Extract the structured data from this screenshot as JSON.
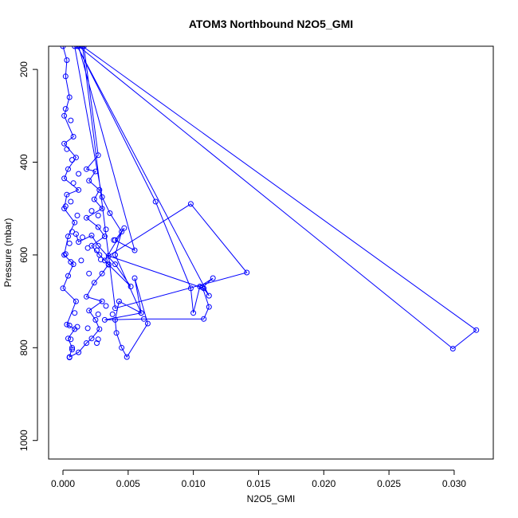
{
  "chart_data": {
    "type": "line",
    "title": "ATOM3 Northbound N2O5_GMI",
    "xlabel": "N2O5_GMI",
    "ylabel": "Pressure (mbar)",
    "xlim": [
      -0.0011,
      0.033
    ],
    "ylim": [
      1040,
      150
    ],
    "y_reversed": true,
    "grid": false,
    "x_ticks": [
      0.0,
      0.005,
      0.01,
      0.015,
      0.02,
      0.025,
      0.03
    ],
    "x_tick_labels": [
      "0.000",
      "0.005",
      "0.010",
      "0.015",
      "0.020",
      "0.025",
      "0.030"
    ],
    "y_ticks": [
      200,
      400,
      600,
      800,
      1000
    ],
    "y_tick_labels": [
      "200",
      "400",
      "600",
      "800",
      "1000"
    ],
    "color": "#0000ff",
    "marker": "open-circle",
    "points": [
      [
        0.0,
        150
      ],
      [
        0.0003,
        180
      ],
      [
        0.0002,
        215
      ],
      [
        0.0005,
        260
      ],
      [
        0.0001,
        300
      ],
      [
        0.0008,
        345
      ],
      [
        0.0001,
        360
      ],
      [
        0.001,
        390
      ],
      [
        0.0004,
        415
      ],
      [
        0.0001,
        435
      ],
      [
        0.0012,
        460
      ],
      [
        0.0003,
        470
      ],
      [
        0.0001,
        500
      ],
      [
        0.0009,
        530
      ],
      [
        0.0004,
        560
      ],
      [
        0.0001,
        600
      ],
      [
        0.0008,
        620
      ],
      [
        0.0004,
        645
      ],
      [
        0.0,
        672
      ],
      [
        0.001,
        700
      ],
      [
        0.0003,
        750
      ],
      [
        0.0009,
        760
      ],
      [
        0.0004,
        780
      ],
      [
        0.0007,
        800
      ],
      [
        0.0005,
        820
      ],
      [
        0.0012,
        810
      ],
      [
        0.0018,
        790
      ],
      [
        0.0022,
        780
      ],
      [
        0.0028,
        760
      ],
      [
        0.0025,
        740
      ],
      [
        0.002,
        720
      ],
      [
        0.003,
        700
      ],
      [
        0.0018,
        690
      ],
      [
        0.0024,
        660
      ],
      [
        0.003,
        640
      ],
      [
        0.0035,
        620
      ],
      [
        0.0028,
        600
      ],
      [
        0.0022,
        580
      ],
      [
        0.0032,
        560
      ],
      [
        0.0027,
        540
      ],
      [
        0.0018,
        520
      ],
      [
        0.003,
        500
      ],
      [
        0.0024,
        480
      ],
      [
        0.0028,
        460
      ],
      [
        0.002,
        440
      ],
      [
        0.0025,
        420
      ],
      [
        0.0018,
        415
      ],
      [
        0.0027,
        385
      ],
      [
        0.0016,
        150
      ],
      [
        0.0009,
        150
      ],
      [
        0.003,
        475
      ],
      [
        0.0036,
        510
      ],
      [
        0.0045,
        550
      ],
      [
        0.004,
        600
      ],
      [
        0.006,
        725
      ],
      [
        0.0043,
        700
      ],
      [
        0.004,
        740
      ],
      [
        0.0041,
        768
      ],
      [
        0.0045,
        800
      ],
      [
        0.0049,
        820
      ],
      [
        0.0065,
        748
      ],
      [
        0.0055,
        650
      ],
      [
        0.006,
        725
      ],
      [
        0.0032,
        740
      ],
      [
        0.0062,
        738
      ],
      [
        0.0108,
        738
      ],
      [
        0.0112,
        712
      ],
      [
        0.0107,
        670
      ],
      [
        0.0115,
        650
      ],
      [
        0.0105,
        668
      ],
      [
        0.01,
        725
      ],
      [
        0.0098,
        672
      ],
      [
        0.0071,
        485
      ],
      [
        0.0011,
        150
      ],
      [
        0.0112,
        688
      ],
      [
        0.0108,
        672
      ],
      [
        0.0035,
        602
      ],
      [
        0.0098,
        490
      ],
      [
        0.0141,
        638
      ],
      [
        0.004,
        715
      ],
      [
        0.0015,
        150
      ],
      [
        0.0317,
        762
      ],
      [
        0.0299,
        802
      ],
      [
        0.0012,
        150
      ],
      [
        0.0055,
        590
      ],
      [
        0.004,
        568
      ],
      [
        0.0047,
        542
      ],
      [
        0.0032,
        612
      ],
      [
        0.0035,
        621
      ],
      [
        0.0052,
        668
      ],
      [
        0.004,
        620
      ],
      [
        0.0027,
        580
      ],
      [
        0.0022,
        558
      ],
      [
        0.0012,
        572
      ],
      [
        0.001,
        555
      ]
    ],
    "extra_points": [
      [
        0.0002,
        285
      ],
      [
        0.0006,
        310
      ],
      [
        0.0003,
        372
      ],
      [
        0.0007,
        395
      ],
      [
        0.0012,
        425
      ],
      [
        0.0008,
        445
      ],
      [
        0.0006,
        485
      ],
      [
        0.0002,
        495
      ],
      [
        0.0011,
        515
      ],
      [
        0.0007,
        550
      ],
      [
        0.0005,
        575
      ],
      [
        0.0002,
        598
      ],
      [
        0.0006,
        615
      ],
      [
        0.0009,
        725
      ],
      [
        0.0005,
        752
      ],
      [
        0.0011,
        755
      ],
      [
        0.0006,
        782
      ],
      [
        0.0007,
        804
      ],
      [
        0.0005,
        821
      ],
      [
        0.0019,
        758
      ],
      [
        0.0026,
        790
      ],
      [
        0.0027,
        782
      ],
      [
        0.0014,
        612
      ],
      [
        0.0019,
        585
      ],
      [
        0.0015,
        562
      ],
      [
        0.0022,
        505
      ],
      [
        0.0027,
        515
      ],
      [
        0.0033,
        545
      ],
      [
        0.0039,
        568
      ],
      [
        0.0029,
        610
      ],
      [
        0.0026,
        590
      ],
      [
        0.002,
        640
      ],
      [
        0.0033,
        710
      ],
      [
        0.0038,
        728
      ],
      [
        0.0027,
        728
      ]
    ]
  }
}
